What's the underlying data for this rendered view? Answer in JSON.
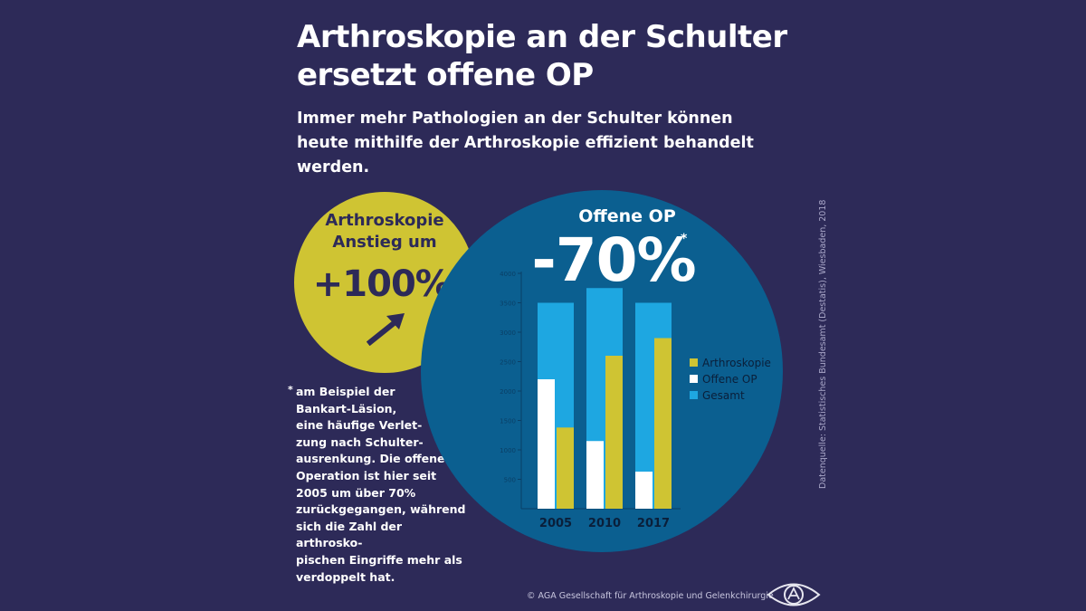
{
  "title_line1": "Arthroskopie an der Schulter",
  "title_line2": "ersetzt offene OP",
  "subtitle": "Immer mehr Pathologien an der Schulter können heute mithilfe der Arthroskopie effizient behandelt werden.",
  "arthroscopy_callout": {
    "line1": "Arthroskopie",
    "line2": "Anstieg um",
    "value": "+100%",
    "star": "*",
    "icon": "arrow-up-right-icon"
  },
  "open_op_callout": {
    "label": "Offene OP",
    "value": "-70%",
    "star": "*"
  },
  "footnote": {
    "star": "*",
    "text": "am Beispiel der\nBankart-Läsion,\neine häufige Verlet-\nzung nach Schulter-\nausrenkung. Die offene\nOperation ist hier seit\n2005 um über 70%\nzurückgegangen, während\nsich die Zahl der arthrosko-\npischen Eingriffe mehr als\nverdoppelt hat."
  },
  "source": "Datenquelle: Statistisches Bundesamt (Destatis), Wiesbaden, 2018",
  "copyright": "© AGA Gesellschaft für Arthroskopie und Gelenkchirurgie",
  "logo_icon": "aga-eye-logo-icon",
  "colors": {
    "background": "#2d2a58",
    "circle_blue": "#0b5f90",
    "circle_yellow": "#cfc433",
    "arthroskopie": "#cfc433",
    "offene_op": "#ffffff",
    "gesamt": "#1ea7e1"
  },
  "chart_data": {
    "type": "bar",
    "categories": [
      "2005",
      "2010",
      "2017"
    ],
    "series": [
      {
        "name": "Gesamt",
        "values": [
          3500,
          3750,
          3500
        ]
      },
      {
        "name": "Offene OP",
        "values": [
          2200,
          1150,
          630
        ]
      },
      {
        "name": "Arthroskopie",
        "values": [
          1380,
          2600,
          2900
        ]
      }
    ],
    "y_ticks": [
      "500",
      "1000",
      "1500",
      "2000",
      "2500",
      "3000",
      "3500",
      "4000"
    ],
    "ylim": [
      0,
      4000
    ],
    "legend_position": "right",
    "grid": false
  }
}
